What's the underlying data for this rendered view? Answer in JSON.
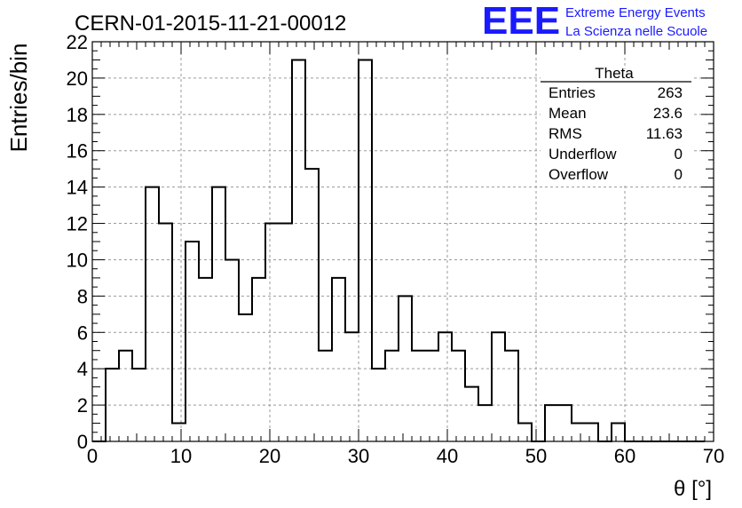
{
  "title": "CERN-01-2015-11-21-00012",
  "logo": {
    "mark": "EEE",
    "line1": "Extreme Energy Events",
    "line2": "La Scienza nelle Scuole",
    "color": "#1a1aff"
  },
  "stats": {
    "name": "Theta",
    "rows": [
      {
        "label": "Entries",
        "value": "263"
      },
      {
        "label": "Mean",
        "value": "23.6"
      },
      {
        "label": "RMS",
        "value": "11.63"
      },
      {
        "label": "Underflow",
        "value": "0"
      },
      {
        "label": "Overflow",
        "value": "0"
      }
    ]
  },
  "chart_data": {
    "type": "bar",
    "style": "step-histogram",
    "xlabel": "θ [°]",
    "ylabel": "Entries/bin",
    "xlim": [
      0,
      70
    ],
    "ylim": [
      0,
      22
    ],
    "grid": true,
    "x_ticks": [
      0,
      10,
      20,
      30,
      40,
      50,
      60,
      70
    ],
    "y_ticks": [
      0,
      2,
      4,
      6,
      8,
      10,
      12,
      14,
      16,
      18,
      20,
      22
    ],
    "bin_width": 1.5,
    "first_bin_start": 0,
    "values": [
      0,
      4,
      5,
      4,
      14,
      12,
      1,
      11,
      9,
      14,
      10,
      7,
      9,
      12,
      12,
      21,
      15,
      5,
      9,
      6,
      21,
      4,
      5,
      8,
      5,
      5,
      6,
      5,
      3,
      2,
      6,
      5,
      1,
      0,
      2,
      2,
      1,
      1,
      0,
      1,
      0,
      0,
      0,
      0,
      0,
      0
    ]
  }
}
